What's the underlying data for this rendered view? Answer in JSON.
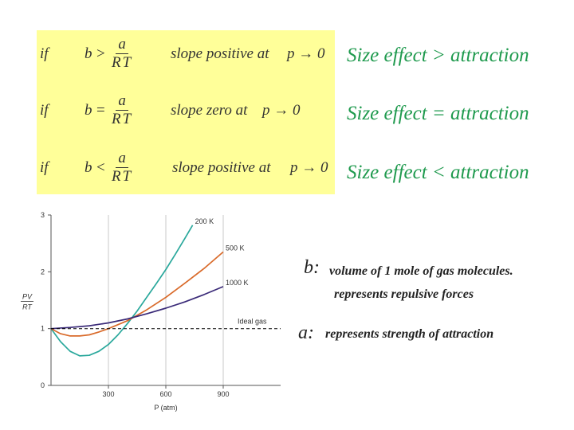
{
  "conditions": [
    {
      "if": "if",
      "lhs": "b",
      "relation": ">",
      "numerator": "a",
      "denominator": "RT",
      "statement": "slope positive at",
      "limit": "p → 0",
      "effect": "Size effect  > attraction"
    },
    {
      "if": "if",
      "lhs": "b",
      "relation": "=",
      "numerator": "a",
      "denominator": "RT",
      "statement": "slope zero at",
      "limit": "p → 0",
      "effect": "Size effect  = attraction"
    },
    {
      "if": "if",
      "lhs": "b",
      "relation": "<",
      "numerator": "a",
      "denominator": "RT",
      "statement": "slope positive at",
      "limit": "p → 0",
      "effect": "Size effect  < attraction"
    }
  ],
  "definitions": {
    "b_symbol": "b:",
    "b_line1": "volume of 1 mole of gas molecules.",
    "b_line2": "represents repulsive forces",
    "a_symbol": "a:",
    "a_line1": "represents strength of attraction"
  },
  "colors": {
    "highlight": "#ffff99",
    "effect_text": "#1f9a4e"
  },
  "chart_data": {
    "type": "line",
    "xlabel": "P (atm)",
    "ylabel_num": "PV",
    "ylabel_den": "RT",
    "xlim": [
      0,
      1200
    ],
    "ylim": [
      0,
      3
    ],
    "x_ticks": [
      300,
      600,
      900
    ],
    "y_ticks": [
      0,
      1,
      2,
      3
    ],
    "grid": "vertical gridlines at x ticks",
    "series": [
      {
        "name": "200 K",
        "color": "#2aa89c",
        "dashed": false,
        "x": [
          0,
          50,
          100,
          150,
          200,
          250,
          300,
          350,
          400,
          450,
          500,
          550,
          600,
          650,
          700,
          740
        ],
        "y": [
          1.0,
          0.77,
          0.6,
          0.52,
          0.53,
          0.6,
          0.72,
          0.89,
          1.09,
          1.31,
          1.55,
          1.79,
          2.04,
          2.31,
          2.59,
          2.82
        ]
      },
      {
        "name": "500 K",
        "color": "#d96a2a",
        "dashed": false,
        "x": [
          0,
          50,
          100,
          150,
          200,
          250,
          300,
          400,
          500,
          600,
          700,
          800,
          900
        ],
        "y": [
          1.0,
          0.91,
          0.87,
          0.87,
          0.89,
          0.94,
          1.0,
          1.14,
          1.33,
          1.55,
          1.8,
          2.06,
          2.35
        ]
      },
      {
        "name": "1000 K",
        "color": "#3a2a78",
        "dashed": false,
        "x": [
          0,
          100,
          200,
          300,
          400,
          500,
          600,
          700,
          800,
          900
        ],
        "y": [
          1.0,
          1.02,
          1.05,
          1.1,
          1.17,
          1.26,
          1.36,
          1.47,
          1.6,
          1.74
        ]
      },
      {
        "name": "Ideal gas",
        "color": "#000000",
        "dashed": true,
        "x": [
          0,
          1200
        ],
        "y": [
          1.0,
          1.0
        ]
      }
    ]
  }
}
